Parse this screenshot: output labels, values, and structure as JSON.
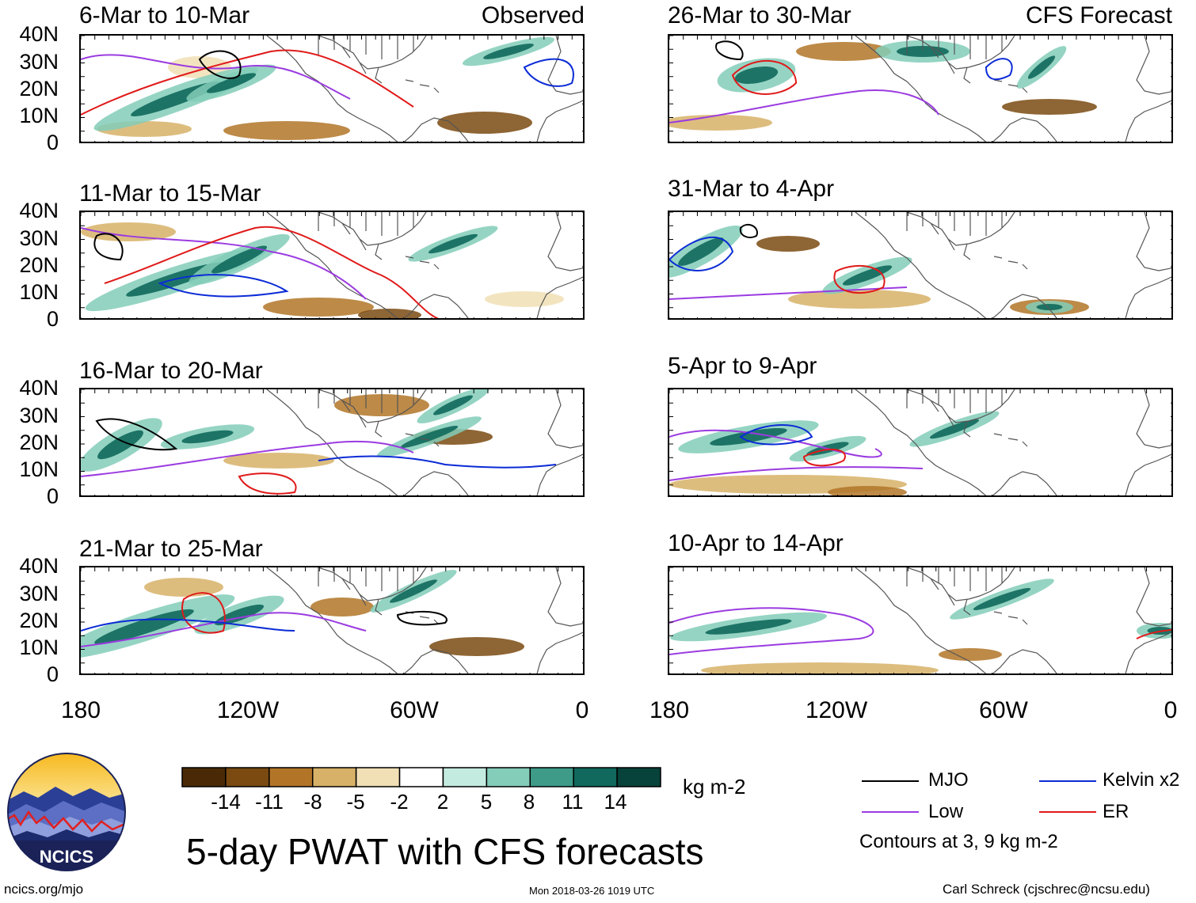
{
  "panels": [
    {
      "id": "p1",
      "title": "6-Mar to 10-Mar",
      "tag": "Observed"
    },
    {
      "id": "p2",
      "title": "11-Mar to 15-Mar",
      "tag": ""
    },
    {
      "id": "p3",
      "title": "16-Mar to 20-Mar",
      "tag": ""
    },
    {
      "id": "p4",
      "title": "21-Mar to 25-Mar",
      "tag": ""
    },
    {
      "id": "p5",
      "title": "26-Mar to 30-Mar",
      "tag": "CFS Forecast"
    },
    {
      "id": "p6",
      "title": "31-Mar to 4-Apr",
      "tag": ""
    },
    {
      "id": "p7",
      "title": "5-Apr to 9-Apr",
      "tag": ""
    },
    {
      "id": "p8",
      "title": "10-Apr to 14-Apr",
      "tag": ""
    }
  ],
  "lat_labels": [
    "40N",
    "30N",
    "20N",
    "10N",
    "0"
  ],
  "lon_labels": [
    "180",
    "120W",
    "60W",
    "0"
  ],
  "colorbar": {
    "unit": "kg m-2",
    "tick_labels": [
      "-14",
      "-11",
      "-8",
      "-5",
      "-2",
      "2",
      "5",
      "8",
      "11",
      "14"
    ],
    "colors": [
      "#4a2a06",
      "#7a4a10",
      "#b27528",
      "#d7b167",
      "#f1dfb5",
      "#ffffff",
      "#c4ebe0",
      "#83cdb9",
      "#3d9b88",
      "#10695c",
      "#07433a"
    ]
  },
  "legend": {
    "items": [
      {
        "label": "MJO",
        "color": "#000000"
      },
      {
        "label": "Kelvin x2",
        "color": "#0b2bd6"
      },
      {
        "label": "Low",
        "color": "#9b3be0"
      },
      {
        "label": "ER",
        "color": "#e01a1a"
      }
    ],
    "note": "Contours at 3, 9 kg m-2"
  },
  "title": "5-day PWAT with CFS forecasts",
  "logo": {
    "text": "NCICS"
  },
  "footer": {
    "left": "ncics.org/mjo",
    "center": "Mon 2018-03-26 1019 UTC",
    "right": "Carl Schreck (cjschrec@ncsu.edu)"
  }
}
